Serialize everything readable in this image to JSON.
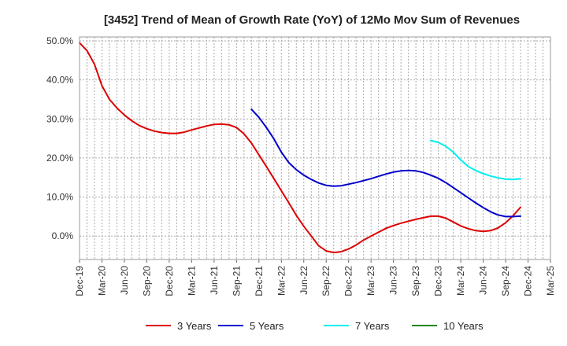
{
  "chart_data": {
    "type": "line",
    "title": "[3452]  Trend of Mean of Growth Rate (YoY) of 12Mo Mov Sum of Revenues",
    "xlabel": "",
    "ylabel": "",
    "ylim": [
      -6,
      51
    ],
    "yticks": [
      50,
      40,
      30,
      20,
      10,
      0
    ],
    "ytick_labels": [
      "50.0%",
      "40.0%",
      "30.0%",
      "20.0%",
      "10.0%",
      "0.0%"
    ],
    "x_start": "Dec-19",
    "xticks": [
      "Dec-19",
      "Mar-20",
      "Jun-20",
      "Sep-20",
      "Dec-20",
      "Mar-21",
      "Jun-21",
      "Sep-21",
      "Dec-21",
      "Mar-22",
      "Jun-22",
      "Sep-22",
      "Dec-22",
      "Mar-23",
      "Jun-23",
      "Sep-23",
      "Dec-23",
      "Mar-24",
      "Jun-24",
      "Sep-24",
      "Dec-24",
      "Mar-25"
    ],
    "x_unit": "months since Dec-19",
    "grid": true,
    "legend_position": "bottom",
    "series": [
      {
        "name": "3 Years",
        "color": "#dd0000",
        "x": [
          0,
          1,
          2,
          3,
          4,
          5,
          6,
          7,
          8,
          9,
          10,
          11,
          12,
          13,
          14,
          15,
          16,
          17,
          18,
          19,
          20,
          21,
          22,
          23,
          24,
          25,
          26,
          27,
          28,
          29,
          30,
          31,
          32,
          33,
          34,
          35,
          36,
          37,
          38,
          39,
          40,
          41,
          42,
          43,
          44,
          45,
          46,
          47,
          48,
          49,
          50,
          51,
          52,
          53,
          54,
          55,
          56,
          57,
          58,
          59,
          60
        ],
        "values": [
          49.5,
          47.5,
          44,
          38.5,
          35,
          32.8,
          31,
          29.5,
          28.3,
          27.5,
          26.9,
          26.5,
          26.3,
          26.3,
          26.6,
          27.2,
          27.7,
          28.2,
          28.6,
          28.7,
          28.5,
          27.8,
          26.2,
          23.8,
          20.8,
          17.8,
          14.7,
          11.6,
          8.5,
          5.3,
          2.5,
          0,
          -2.5,
          -3.8,
          -4.2,
          -4,
          -3.3,
          -2.3,
          -1,
          0,
          1,
          2,
          2.7,
          3.3,
          3.8,
          4.3,
          4.7,
          5.1,
          5.1,
          4.6,
          3.6,
          2.6,
          1.9,
          1.4,
          1.2,
          1.4,
          2.1,
          3.4,
          5.2,
          7.4,
          null
        ]
      },
      {
        "name": "5 Years",
        "color": "#0000cc",
        "x": [
          23,
          24,
          25,
          26,
          27,
          28,
          29,
          30,
          31,
          32,
          33,
          34,
          35,
          36,
          37,
          38,
          39,
          40,
          41,
          42,
          43,
          44,
          45,
          46,
          47,
          48,
          49,
          50,
          51,
          52,
          53,
          54,
          55,
          56,
          57,
          58,
          59,
          60
        ],
        "values": [
          32.5,
          30.4,
          27.8,
          24.9,
          21.5,
          18.8,
          17,
          15.6,
          14.5,
          13.6,
          13,
          12.8,
          12.9,
          13.3,
          13.7,
          14.2,
          14.7,
          15.3,
          15.9,
          16.4,
          16.7,
          16.8,
          16.7,
          16.3,
          15.6,
          14.8,
          13.7,
          12.4,
          11.1,
          9.8,
          8.5,
          7.3,
          6.2,
          5.4,
          5,
          5,
          5.1,
          null
        ]
      },
      {
        "name": "7 Years",
        "color": "#00eeee",
        "x": [
          47,
          48,
          49,
          50,
          51,
          52,
          53,
          54,
          55,
          56,
          57,
          58,
          59,
          60
        ],
        "values": [
          24.5,
          24,
          23,
          21.5,
          19.5,
          17.8,
          16.8,
          16,
          15.4,
          14.9,
          14.6,
          14.5,
          14.7,
          null
        ]
      },
      {
        "name": "10 Years",
        "color": "#228822",
        "x": [],
        "values": []
      }
    ]
  }
}
